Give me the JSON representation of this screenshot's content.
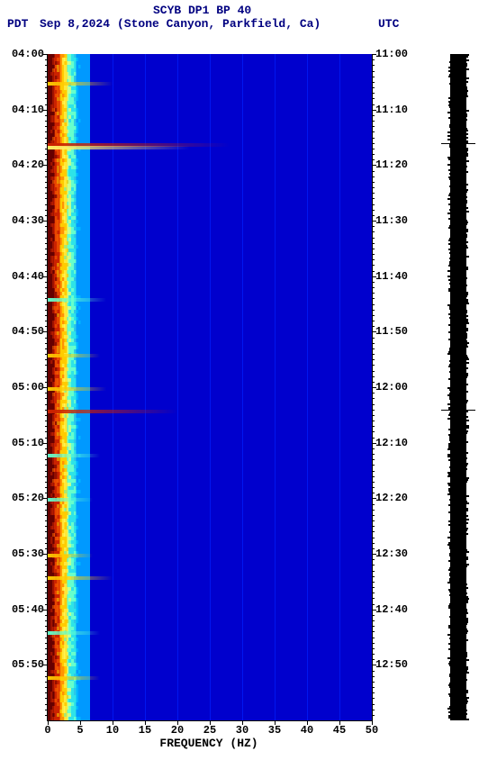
{
  "header": {
    "title": "SCYB DP1 BP 40",
    "tz_left": "PDT",
    "date": "Sep 8,2024",
    "location": "(Stone Canyon, Parkfield, Ca)",
    "tz_right": "UTC"
  },
  "chart": {
    "type": "heatmap",
    "x_label": "FREQUENCY (HZ)",
    "x_ticks": [
      0,
      5,
      10,
      15,
      20,
      25,
      30,
      35,
      40,
      45,
      50
    ],
    "xlim": [
      0,
      50
    ],
    "y_ticks_left": [
      "04:00",
      "04:10",
      "04:20",
      "04:30",
      "04:40",
      "04:50",
      "05:00",
      "05:10",
      "05:20",
      "05:30",
      "05:40",
      "05:50"
    ],
    "y_ticks_right": [
      "11:00",
      "11:10",
      "11:20",
      "11:30",
      "11:40",
      "11:50",
      "12:00",
      "12:10",
      "12:20",
      "12:30",
      "12:40",
      "12:50"
    ],
    "y_major_count": 12,
    "y_minor_per_major": 10,
    "y_span_minutes": 120,
    "background_color": "#0000cd",
    "gridline_color": "#0020ff",
    "left_bands": [
      {
        "width_hz": 1.0,
        "color": "#660000"
      },
      {
        "width_hz": 1.0,
        "color": "#cc2200"
      },
      {
        "width_hz": 1.0,
        "color": "#ffcc00"
      },
      {
        "width_hz": 1.5,
        "color": "#66ffcc"
      },
      {
        "width_hz": 2.0,
        "color": "#0099ff"
      }
    ],
    "event_streaks": [
      {
        "minute": 5,
        "color": "#ffcc00",
        "extent_hz": 10
      },
      {
        "minute": 16,
        "color": "#cc2200",
        "extent_hz": 28
      },
      {
        "minute": 16.5,
        "color": "#ffee66",
        "extent_hz": 22
      },
      {
        "minute": 44,
        "color": "#66ffcc",
        "extent_hz": 9
      },
      {
        "minute": 54,
        "color": "#ffcc00",
        "extent_hz": 8
      },
      {
        "minute": 60,
        "color": "#ffcc00",
        "extent_hz": 9
      },
      {
        "minute": 64,
        "color": "#cc2200",
        "extent_hz": 20
      },
      {
        "minute": 72,
        "color": "#66ffcc",
        "extent_hz": 8
      },
      {
        "minute": 80,
        "color": "#66ffcc",
        "extent_hz": 7
      },
      {
        "minute": 90,
        "color": "#ffcc00",
        "extent_hz": 7
      },
      {
        "minute": 94,
        "color": "#ffcc00",
        "extent_hz": 10
      },
      {
        "minute": 104,
        "color": "#66ffcc",
        "extent_hz": 8
      },
      {
        "minute": 112,
        "color": "#ffcc00",
        "extent_hz": 8
      }
    ],
    "title_fontsize": 13,
    "label_fontsize": 13,
    "tick_fontsize": 12
  },
  "waveform": {
    "color": "#000000",
    "spikes_minutes": [
      16,
      64
    ]
  },
  "footer": {
    "mark": ""
  }
}
